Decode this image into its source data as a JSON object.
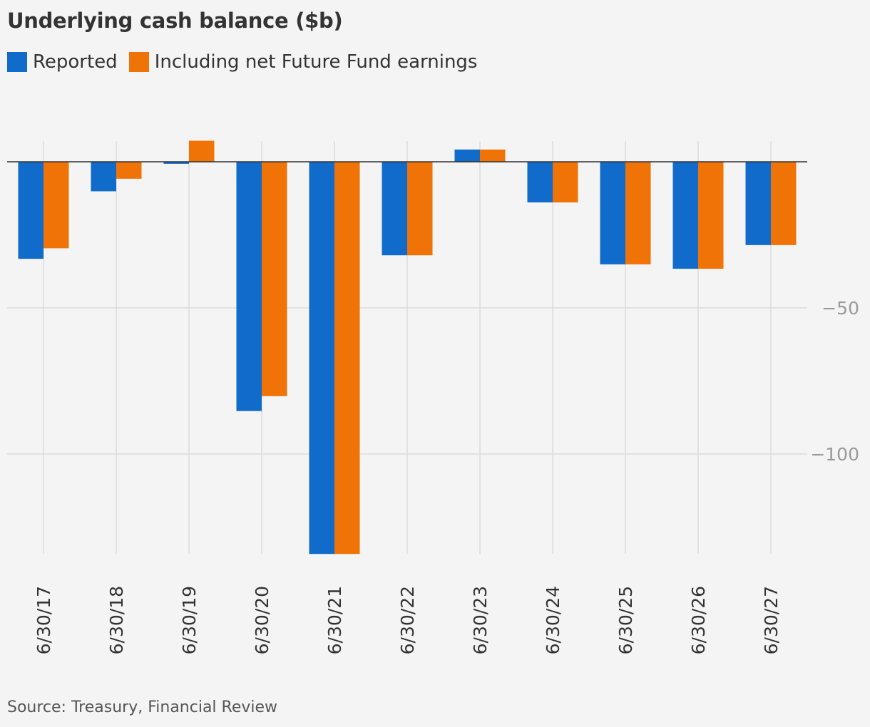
{
  "title": "Underlying cash balance ($b)",
  "legend": [
    {
      "label": "Reported",
      "color": "#116bca"
    },
    {
      "label": "Including net Future Fund earnings",
      "color": "#f07307"
    }
  ],
  "source": "Source: Treasury, Financial Review",
  "chart_data": {
    "type": "bar",
    "categories": [
      "6/30/17",
      "6/30/18",
      "6/30/19",
      "6/30/20",
      "6/30/21",
      "6/30/22",
      "6/30/23",
      "6/30/24",
      "6/30/25",
      "6/30/26",
      "6/30/27"
    ],
    "series": [
      {
        "name": "Reported",
        "color": "#116bca",
        "values": [
          -33.2,
          -10.1,
          -0.7,
          -85.3,
          -134.2,
          -32.0,
          4.2,
          -13.9,
          -35.1,
          -36.6,
          -28.5
        ]
      },
      {
        "name": "Including net Future Fund earnings",
        "color": "#f07307",
        "values": [
          -29.6,
          -5.8,
          7.2,
          -80.2,
          -134.2,
          -32.0,
          4.2,
          -13.9,
          -35.1,
          -36.6,
          -28.5
        ]
      }
    ],
    "yticks": [
      -50,
      -100
    ],
    "ytick_labels": [
      "−50",
      "−100"
    ],
    "ylim": [
      -134.2,
      7.2
    ],
    "grid": true,
    "legend_position": "top-left"
  }
}
